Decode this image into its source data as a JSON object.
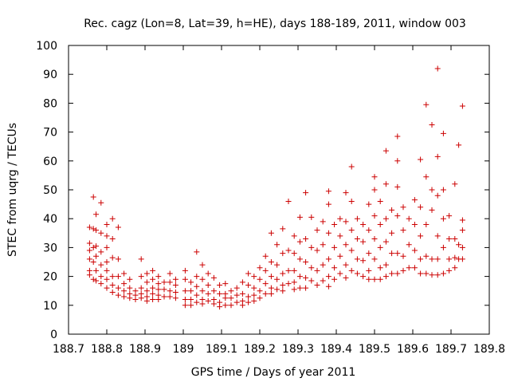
{
  "chart_data": {
    "type": "scatter",
    "title": "Rec. cagz (Lon=8, Lat=39, h=HE), days 188-189, 2011, window 003",
    "xlabel": "GPS time / Days of year 2011",
    "ylabel": "STEC from uqrg / TECUs",
    "xlim": [
      188.7,
      189.8
    ],
    "ylim": [
      0,
      100
    ],
    "xticks": [
      188.7,
      188.8,
      188.9,
      189.0,
      189.1,
      189.2,
      189.3,
      189.4,
      189.5,
      189.6,
      189.7,
      189.8
    ],
    "xtick_labels": [
      "188.7",
      "188.8",
      "188.9",
      "189",
      "189.1",
      "189.2",
      "189.3",
      "189.4",
      "189.5",
      "189.6",
      "189.7",
      "189.8"
    ],
    "yticks": [
      0,
      10,
      20,
      30,
      40,
      50,
      60,
      70,
      80,
      90,
      100
    ],
    "ytick_labels": [
      "0",
      "10",
      "20",
      "30",
      "40",
      "50",
      "60",
      "70",
      "80",
      "90",
      "100"
    ],
    "marker": "+",
    "color": "#cc0000",
    "grid": false,
    "series": [
      {
        "name": "STEC",
        "points": [
          [
            188.755,
            37
          ],
          [
            188.755,
            31.5
          ],
          [
            188.755,
            29
          ],
          [
            188.755,
            26
          ],
          [
            188.755,
            22
          ],
          [
            188.755,
            20.5
          ],
          [
            188.765,
            47.5
          ],
          [
            188.765,
            36.5
          ],
          [
            188.765,
            30
          ],
          [
            188.765,
            25
          ],
          [
            188.765,
            19
          ],
          [
            188.772,
            41.5
          ],
          [
            188.772,
            36
          ],
          [
            188.772,
            30.5
          ],
          [
            188.772,
            27
          ],
          [
            188.772,
            22
          ],
          [
            188.772,
            18.5
          ],
          [
            188.785,
            45.5
          ],
          [
            188.785,
            35
          ],
          [
            188.785,
            28.5
          ],
          [
            188.785,
            24
          ],
          [
            188.785,
            20
          ],
          [
            188.785,
            17.5
          ],
          [
            188.8,
            38
          ],
          [
            188.8,
            34
          ],
          [
            188.8,
            30
          ],
          [
            188.8,
            25
          ],
          [
            188.8,
            22
          ],
          [
            188.8,
            19
          ],
          [
            188.8,
            16
          ],
          [
            188.815,
            40
          ],
          [
            188.815,
            33
          ],
          [
            188.815,
            26.5
          ],
          [
            188.815,
            20
          ],
          [
            188.815,
            17
          ],
          [
            188.815,
            14.5
          ],
          [
            188.83,
            37
          ],
          [
            188.83,
            26
          ],
          [
            188.83,
            20
          ],
          [
            188.83,
            16
          ],
          [
            188.83,
            13.5
          ],
          [
            188.845,
            21
          ],
          [
            188.845,
            17.5
          ],
          [
            188.845,
            15
          ],
          [
            188.845,
            13
          ],
          [
            188.86,
            19
          ],
          [
            188.86,
            16
          ],
          [
            188.86,
            14
          ],
          [
            188.86,
            12.5
          ],
          [
            188.875,
            15
          ],
          [
            188.875,
            13.5
          ],
          [
            188.875,
            12
          ],
          [
            188.89,
            26
          ],
          [
            188.89,
            20
          ],
          [
            188.89,
            16
          ],
          [
            188.89,
            14
          ],
          [
            188.89,
            12.5
          ],
          [
            188.905,
            21
          ],
          [
            188.905,
            18
          ],
          [
            188.905,
            15
          ],
          [
            188.905,
            13
          ],
          [
            188.905,
            11.5
          ],
          [
            188.92,
            22
          ],
          [
            188.92,
            19
          ],
          [
            188.92,
            16
          ],
          [
            188.92,
            14
          ],
          [
            188.92,
            12
          ],
          [
            188.935,
            20
          ],
          [
            188.935,
            17.5
          ],
          [
            188.935,
            15.5
          ],
          [
            188.935,
            13.5
          ],
          [
            188.935,
            12
          ],
          [
            188.95,
            18
          ],
          [
            188.95,
            15.5
          ],
          [
            188.95,
            13
          ],
          [
            188.965,
            21
          ],
          [
            188.965,
            18
          ],
          [
            188.965,
            15
          ],
          [
            188.965,
            13
          ],
          [
            188.98,
            19
          ],
          [
            188.98,
            17
          ],
          [
            188.98,
            14.5
          ],
          [
            188.98,
            12.5
          ],
          [
            189.005,
            22
          ],
          [
            189.005,
            19
          ],
          [
            189.005,
            15
          ],
          [
            189.005,
            12
          ],
          [
            189.005,
            10
          ],
          [
            189.02,
            18
          ],
          [
            189.02,
            15
          ],
          [
            189.02,
            12
          ],
          [
            189.02,
            10
          ],
          [
            189.035,
            28.5
          ],
          [
            189.035,
            20
          ],
          [
            189.035,
            16.5
          ],
          [
            189.035,
            13.5
          ],
          [
            189.035,
            11
          ],
          [
            189.05,
            24
          ],
          [
            189.05,
            19
          ],
          [
            189.05,
            15
          ],
          [
            189.05,
            12
          ],
          [
            189.05,
            10.5
          ],
          [
            189.065,
            21
          ],
          [
            189.065,
            17
          ],
          [
            189.065,
            14
          ],
          [
            189.065,
            11.5
          ],
          [
            189.08,
            19.5
          ],
          [
            189.08,
            15
          ],
          [
            189.08,
            12
          ],
          [
            189.08,
            10.5
          ],
          [
            189.095,
            17
          ],
          [
            189.095,
            14
          ],
          [
            189.095,
            11
          ],
          [
            189.095,
            9.5
          ],
          [
            189.11,
            17.5
          ],
          [
            189.11,
            14
          ],
          [
            189.11,
            12.5
          ],
          [
            189.11,
            10
          ],
          [
            189.125,
            15
          ],
          [
            189.125,
            12.5
          ],
          [
            189.125,
            10
          ],
          [
            189.14,
            16
          ],
          [
            189.14,
            13.5
          ],
          [
            189.14,
            11
          ],
          [
            189.155,
            18
          ],
          [
            189.155,
            14
          ],
          [
            189.155,
            11.5
          ],
          [
            189.155,
            10
          ],
          [
            189.17,
            21
          ],
          [
            189.17,
            17
          ],
          [
            189.17,
            13
          ],
          [
            189.17,
            11
          ],
          [
            189.185,
            20
          ],
          [
            189.185,
            16
          ],
          [
            189.185,
            13.5
          ],
          [
            189.185,
            11.5
          ],
          [
            189.2,
            23
          ],
          [
            189.2,
            19
          ],
          [
            189.2,
            15
          ],
          [
            189.2,
            12.5
          ],
          [
            189.215,
            27
          ],
          [
            189.215,
            22
          ],
          [
            189.215,
            17.5
          ],
          [
            189.215,
            14
          ],
          [
            189.23,
            35
          ],
          [
            189.23,
            25
          ],
          [
            189.23,
            20
          ],
          [
            189.23,
            16
          ],
          [
            189.23,
            14
          ],
          [
            189.245,
            31
          ],
          [
            189.245,
            24
          ],
          [
            189.245,
            19
          ],
          [
            189.245,
            15.5
          ],
          [
            189.26,
            36.5
          ],
          [
            189.26,
            28
          ],
          [
            189.26,
            21
          ],
          [
            189.26,
            17
          ],
          [
            189.26,
            15
          ],
          [
            189.275,
            46
          ],
          [
            189.275,
            29
          ],
          [
            189.275,
            22
          ],
          [
            189.275,
            17.5
          ],
          [
            189.29,
            34
          ],
          [
            189.29,
            28
          ],
          [
            189.29,
            22
          ],
          [
            189.29,
            18
          ],
          [
            189.29,
            15.5
          ],
          [
            189.305,
            40.5
          ],
          [
            189.305,
            32
          ],
          [
            189.305,
            26
          ],
          [
            189.305,
            20
          ],
          [
            189.305,
            16
          ],
          [
            189.32,
            49
          ],
          [
            189.32,
            33
          ],
          [
            189.32,
            25
          ],
          [
            189.32,
            19.5
          ],
          [
            189.32,
            16
          ],
          [
            189.335,
            40.5
          ],
          [
            189.335,
            30
          ],
          [
            189.335,
            23
          ],
          [
            189.335,
            18.5
          ],
          [
            189.35,
            36
          ],
          [
            189.35,
            29
          ],
          [
            189.35,
            22
          ],
          [
            189.35,
            17
          ],
          [
            189.365,
            39
          ],
          [
            189.365,
            31
          ],
          [
            189.365,
            24
          ],
          [
            189.365,
            18.5
          ],
          [
            189.38,
            49.5
          ],
          [
            189.38,
            45
          ],
          [
            189.38,
            35
          ],
          [
            189.38,
            26
          ],
          [
            189.38,
            20
          ],
          [
            189.38,
            16.5
          ],
          [
            189.395,
            38
          ],
          [
            189.395,
            30
          ],
          [
            189.395,
            23
          ],
          [
            189.395,
            19
          ],
          [
            189.41,
            40
          ],
          [
            189.41,
            34
          ],
          [
            189.41,
            27
          ],
          [
            189.41,
            21
          ],
          [
            189.425,
            49
          ],
          [
            189.425,
            39
          ],
          [
            189.425,
            31
          ],
          [
            189.425,
            24
          ],
          [
            189.425,
            19.5
          ],
          [
            189.44,
            58
          ],
          [
            189.44,
            46
          ],
          [
            189.44,
            36
          ],
          [
            189.44,
            29
          ],
          [
            189.44,
            22
          ],
          [
            189.455,
            40
          ],
          [
            189.455,
            33
          ],
          [
            189.455,
            26
          ],
          [
            189.455,
            21
          ],
          [
            189.47,
            38
          ],
          [
            189.47,
            32
          ],
          [
            189.47,
            25.5
          ],
          [
            189.47,
            20
          ],
          [
            189.485,
            45
          ],
          [
            189.485,
            36
          ],
          [
            189.485,
            28
          ],
          [
            189.485,
            22
          ],
          [
            189.485,
            19
          ],
          [
            189.5,
            54.5
          ],
          [
            189.5,
            50
          ],
          [
            189.5,
            41
          ],
          [
            189.5,
            33
          ],
          [
            189.5,
            26
          ],
          [
            189.5,
            19
          ],
          [
            189.515,
            46
          ],
          [
            189.515,
            38
          ],
          [
            189.515,
            30
          ],
          [
            189.515,
            23
          ],
          [
            189.515,
            19
          ],
          [
            189.53,
            63.5
          ],
          [
            189.53,
            52
          ],
          [
            189.53,
            40
          ],
          [
            189.53,
            32
          ],
          [
            189.53,
            24
          ],
          [
            189.53,
            20
          ],
          [
            189.545,
            43
          ],
          [
            189.545,
            35
          ],
          [
            189.545,
            28
          ],
          [
            189.545,
            21
          ],
          [
            189.56,
            68.5
          ],
          [
            189.56,
            60
          ],
          [
            189.56,
            51
          ],
          [
            189.56,
            41
          ],
          [
            189.56,
            28
          ],
          [
            189.56,
            21
          ],
          [
            189.575,
            44
          ],
          [
            189.575,
            36
          ],
          [
            189.575,
            27
          ],
          [
            189.575,
            22
          ],
          [
            189.59,
            40
          ],
          [
            189.59,
            31
          ],
          [
            189.59,
            23
          ],
          [
            189.605,
            46.5
          ],
          [
            189.605,
            38
          ],
          [
            189.605,
            29
          ],
          [
            189.605,
            23
          ],
          [
            189.62,
            60.5
          ],
          [
            189.62,
            44
          ],
          [
            189.62,
            34
          ],
          [
            189.62,
            26
          ],
          [
            189.62,
            21
          ],
          [
            189.635,
            79.5
          ],
          [
            189.635,
            54.5
          ],
          [
            189.635,
            38
          ],
          [
            189.635,
            27
          ],
          [
            189.635,
            21
          ],
          [
            189.65,
            72.5
          ],
          [
            189.65,
            50
          ],
          [
            189.65,
            43
          ],
          [
            189.65,
            26
          ],
          [
            189.65,
            20.5
          ],
          [
            189.665,
            92
          ],
          [
            189.665,
            61.5
          ],
          [
            189.665,
            48
          ],
          [
            189.665,
            34
          ],
          [
            189.665,
            26
          ],
          [
            189.665,
            20.5
          ],
          [
            189.68,
            69.5
          ],
          [
            189.68,
            50
          ],
          [
            189.68,
            40
          ],
          [
            189.68,
            30
          ],
          [
            189.68,
            21
          ],
          [
            189.695,
            41
          ],
          [
            189.695,
            33
          ],
          [
            189.695,
            26
          ],
          [
            189.695,
            22
          ],
          [
            189.71,
            52
          ],
          [
            189.71,
            33
          ],
          [
            189.71,
            26.5
          ],
          [
            189.71,
            23
          ],
          [
            189.72,
            65.5
          ],
          [
            189.72,
            31
          ],
          [
            189.72,
            26
          ],
          [
            189.73,
            79
          ],
          [
            189.73,
            39.5
          ],
          [
            189.73,
            36
          ],
          [
            189.73,
            30
          ],
          [
            189.73,
            26
          ]
        ]
      }
    ]
  }
}
